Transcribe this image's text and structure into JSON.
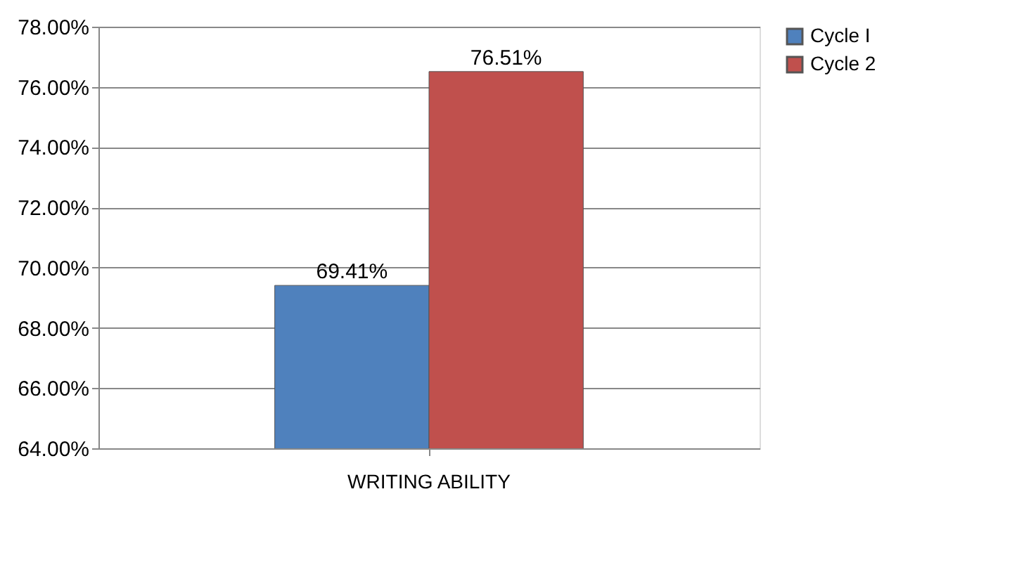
{
  "chart_data": {
    "type": "bar",
    "categories": [
      "WRITING ABILITY"
    ],
    "series": [
      {
        "name": "Cycle I",
        "color": "#4f81bd",
        "values": [
          69.41
        ],
        "value_labels": [
          "69.41%"
        ]
      },
      {
        "name": "Cycle 2",
        "color": "#c0504d",
        "values": [
          76.51
        ],
        "value_labels": [
          "76.51%"
        ]
      }
    ],
    "ylim": [
      64,
      78
    ],
    "yticks": [
      {
        "value": 64,
        "label": "64.00%"
      },
      {
        "value": 66,
        "label": "66.00%"
      },
      {
        "value": 68,
        "label": "68.00%"
      },
      {
        "value": 70,
        "label": "70.00%"
      },
      {
        "value": 72,
        "label": "72.00%"
      },
      {
        "value": 74,
        "label": "74.00%"
      },
      {
        "value": 76,
        "label": "76.00%"
      },
      {
        "value": 78,
        "label": "78.00%"
      }
    ],
    "grid": "y",
    "legend": "right"
  }
}
